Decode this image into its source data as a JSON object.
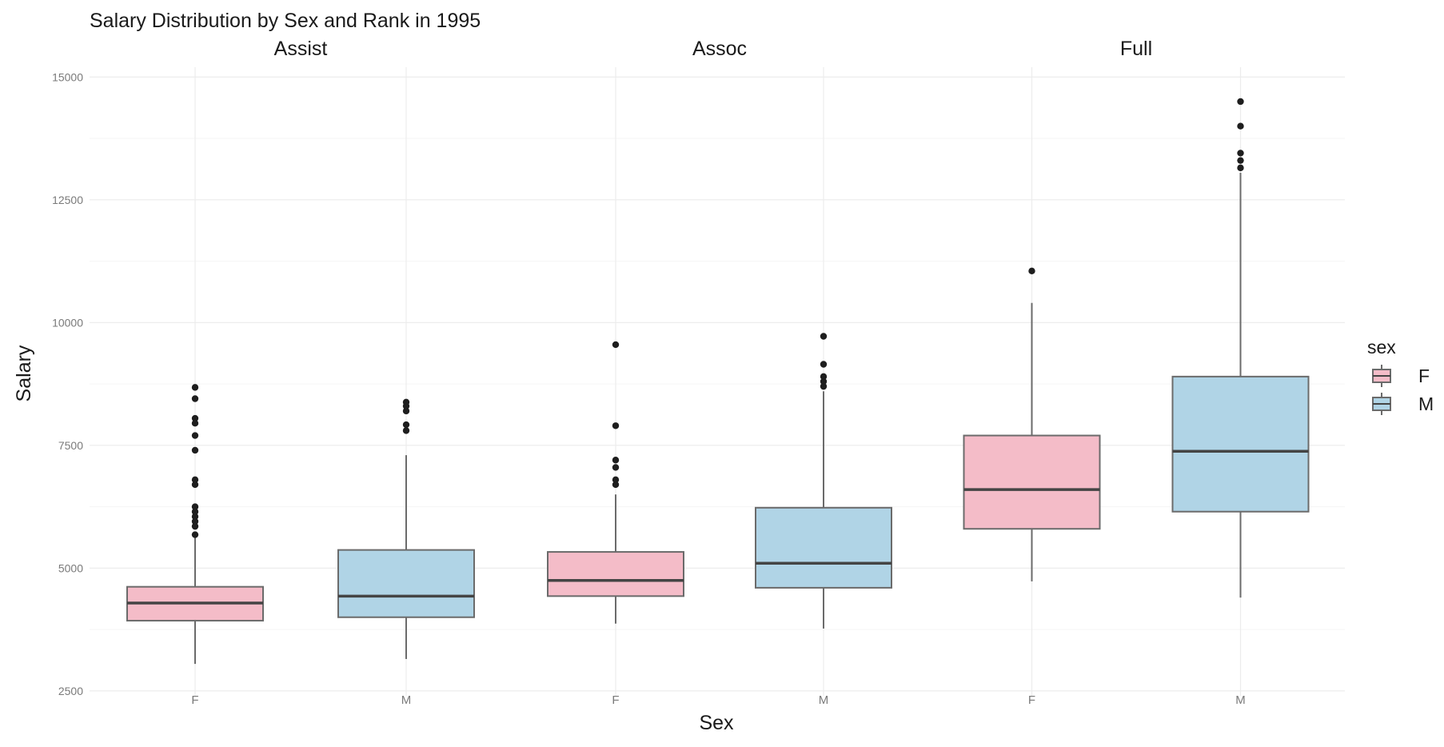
{
  "chart_data": {
    "type": "boxplot",
    "title": "Salary Distribution by Sex and Rank in 1995",
    "xlabel": "Sex",
    "ylabel": "Salary",
    "ylim": [
      2400,
      15200
    ],
    "yticks": [
      2500,
      5000,
      7500,
      10000,
      12500,
      15000
    ],
    "ytick_labels": [
      "2500",
      "5000",
      "7500",
      "10000",
      "12500",
      "15000"
    ],
    "grid": true,
    "legend": {
      "title": "sex",
      "placement": "right",
      "entries": [
        {
          "label": "F",
          "color": "#F4BCC8"
        },
        {
          "label": "M",
          "color": "#B0D4E6"
        }
      ]
    },
    "facets": [
      {
        "name": "Assist",
        "groups": [
          {
            "sex": "F",
            "min": 3050,
            "q1": 3930,
            "median": 4290,
            "q3": 4620,
            "max": 5620,
            "outliers": [
              5680,
              5850,
              5950,
              6050,
              6150,
              6250,
              6700,
              6800,
              7400,
              7700,
              7950,
              8050,
              8450,
              8680
            ]
          },
          {
            "sex": "M",
            "min": 3150,
            "q1": 4000,
            "median": 4430,
            "q3": 5370,
            "max": 7300,
            "outliers": [
              7800,
              7920,
              8200,
              8300,
              8380
            ]
          }
        ]
      },
      {
        "name": "Assoc",
        "groups": [
          {
            "sex": "F",
            "min": 3870,
            "q1": 4430,
            "median": 4750,
            "q3": 5330,
            "max": 6500,
            "outliers": [
              6700,
              6800,
              7050,
              7200,
              7900,
              9550
            ]
          },
          {
            "sex": "M",
            "min": 3770,
            "q1": 4600,
            "median": 5100,
            "q3": 6230,
            "max": 8600,
            "outliers": [
              8700,
              8800,
              8900,
              9150,
              9720
            ]
          }
        ]
      },
      {
        "name": "Full",
        "groups": [
          {
            "sex": "F",
            "min": 4730,
            "q1": 5800,
            "median": 6600,
            "q3": 7700,
            "max": 10400,
            "outliers": [
              11050
            ]
          },
          {
            "sex": "M",
            "min": 4400,
            "q1": 6150,
            "median": 7380,
            "q3": 8900,
            "max": 13050,
            "outliers": [
              13150,
              13300,
              13450,
              14000,
              14500
            ]
          }
        ]
      }
    ]
  }
}
